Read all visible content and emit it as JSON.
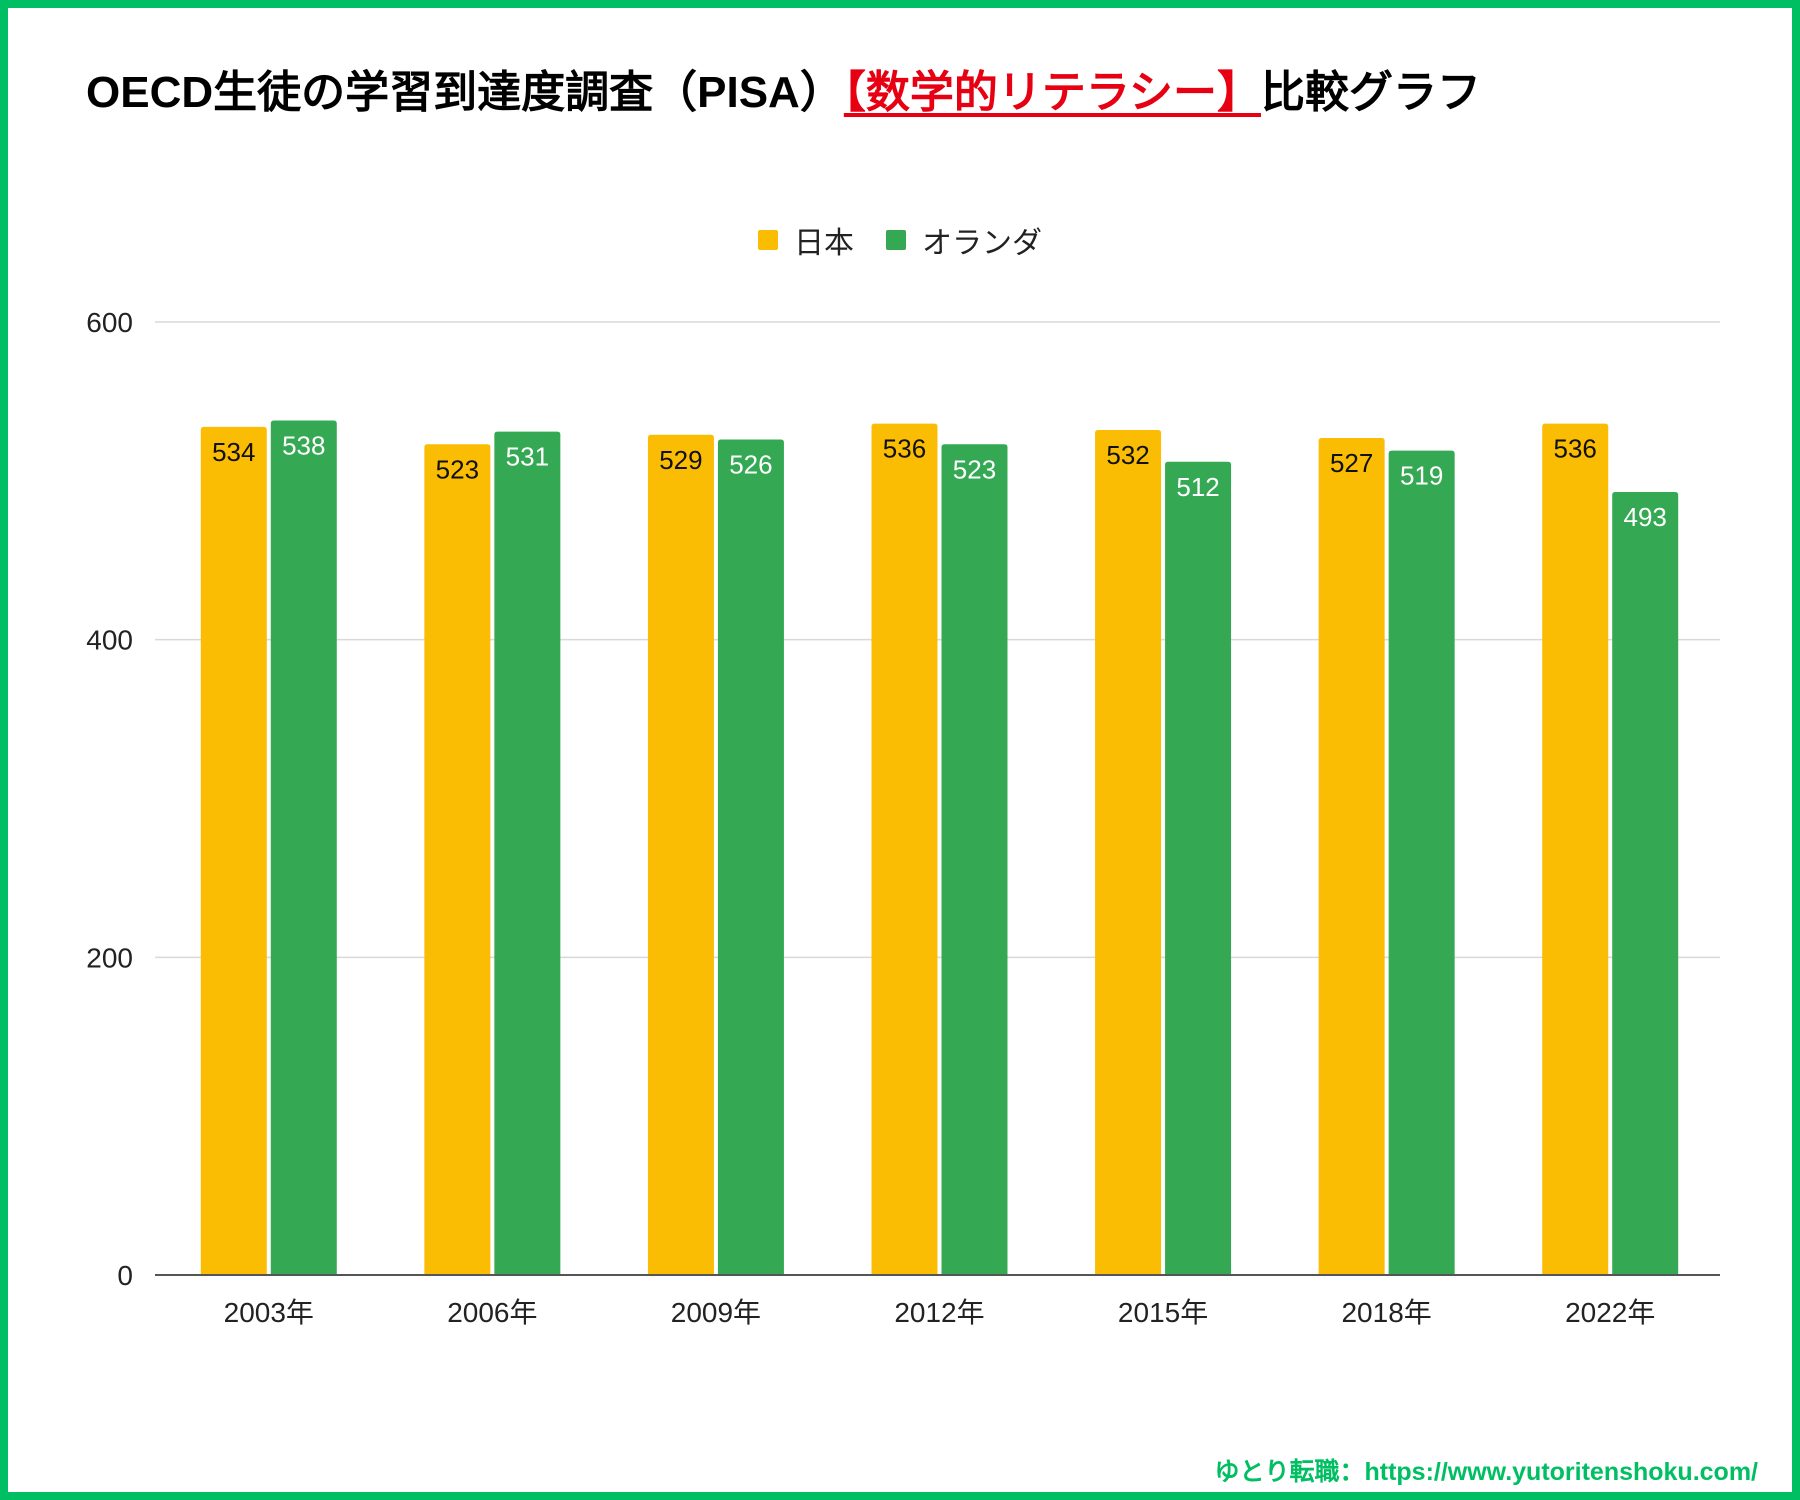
{
  "title": {
    "prefix": "OECD生徒の学習到達度調査（PISA）",
    "highlight": "【数学的リテラシー】",
    "suffix": "比較グラフ"
  },
  "credit": "ゆとり転職：https://www.yutoritenshoku.com/",
  "colors": {
    "frame": "#00bf63",
    "japan": "#fbbc04",
    "netherlands": "#34a853",
    "highlight": "#e60012"
  },
  "chart_data": {
    "type": "bar",
    "title": "OECD生徒の学習到達度調査（PISA）【数学的リテラシー】比較グラフ",
    "xlabel": "",
    "ylabel": "",
    "categories": [
      "2003年",
      "2006年",
      "2009年",
      "2012年",
      "2015年",
      "2018年",
      "2022年"
    ],
    "series": [
      {
        "name": "日本",
        "color": "#fbbc04",
        "label_color": "#111111",
        "values": [
          534,
          523,
          529,
          536,
          532,
          527,
          536
        ]
      },
      {
        "name": "オランダ",
        "color": "#34a853",
        "label_color": "#ffffff",
        "values": [
          538,
          531,
          526,
          523,
          512,
          519,
          493
        ]
      }
    ],
    "ylim": [
      0,
      600
    ],
    "yticks": [
      0,
      200,
      400,
      600
    ],
    "grid": true,
    "legend": "top-center",
    "data_labels": true
  }
}
